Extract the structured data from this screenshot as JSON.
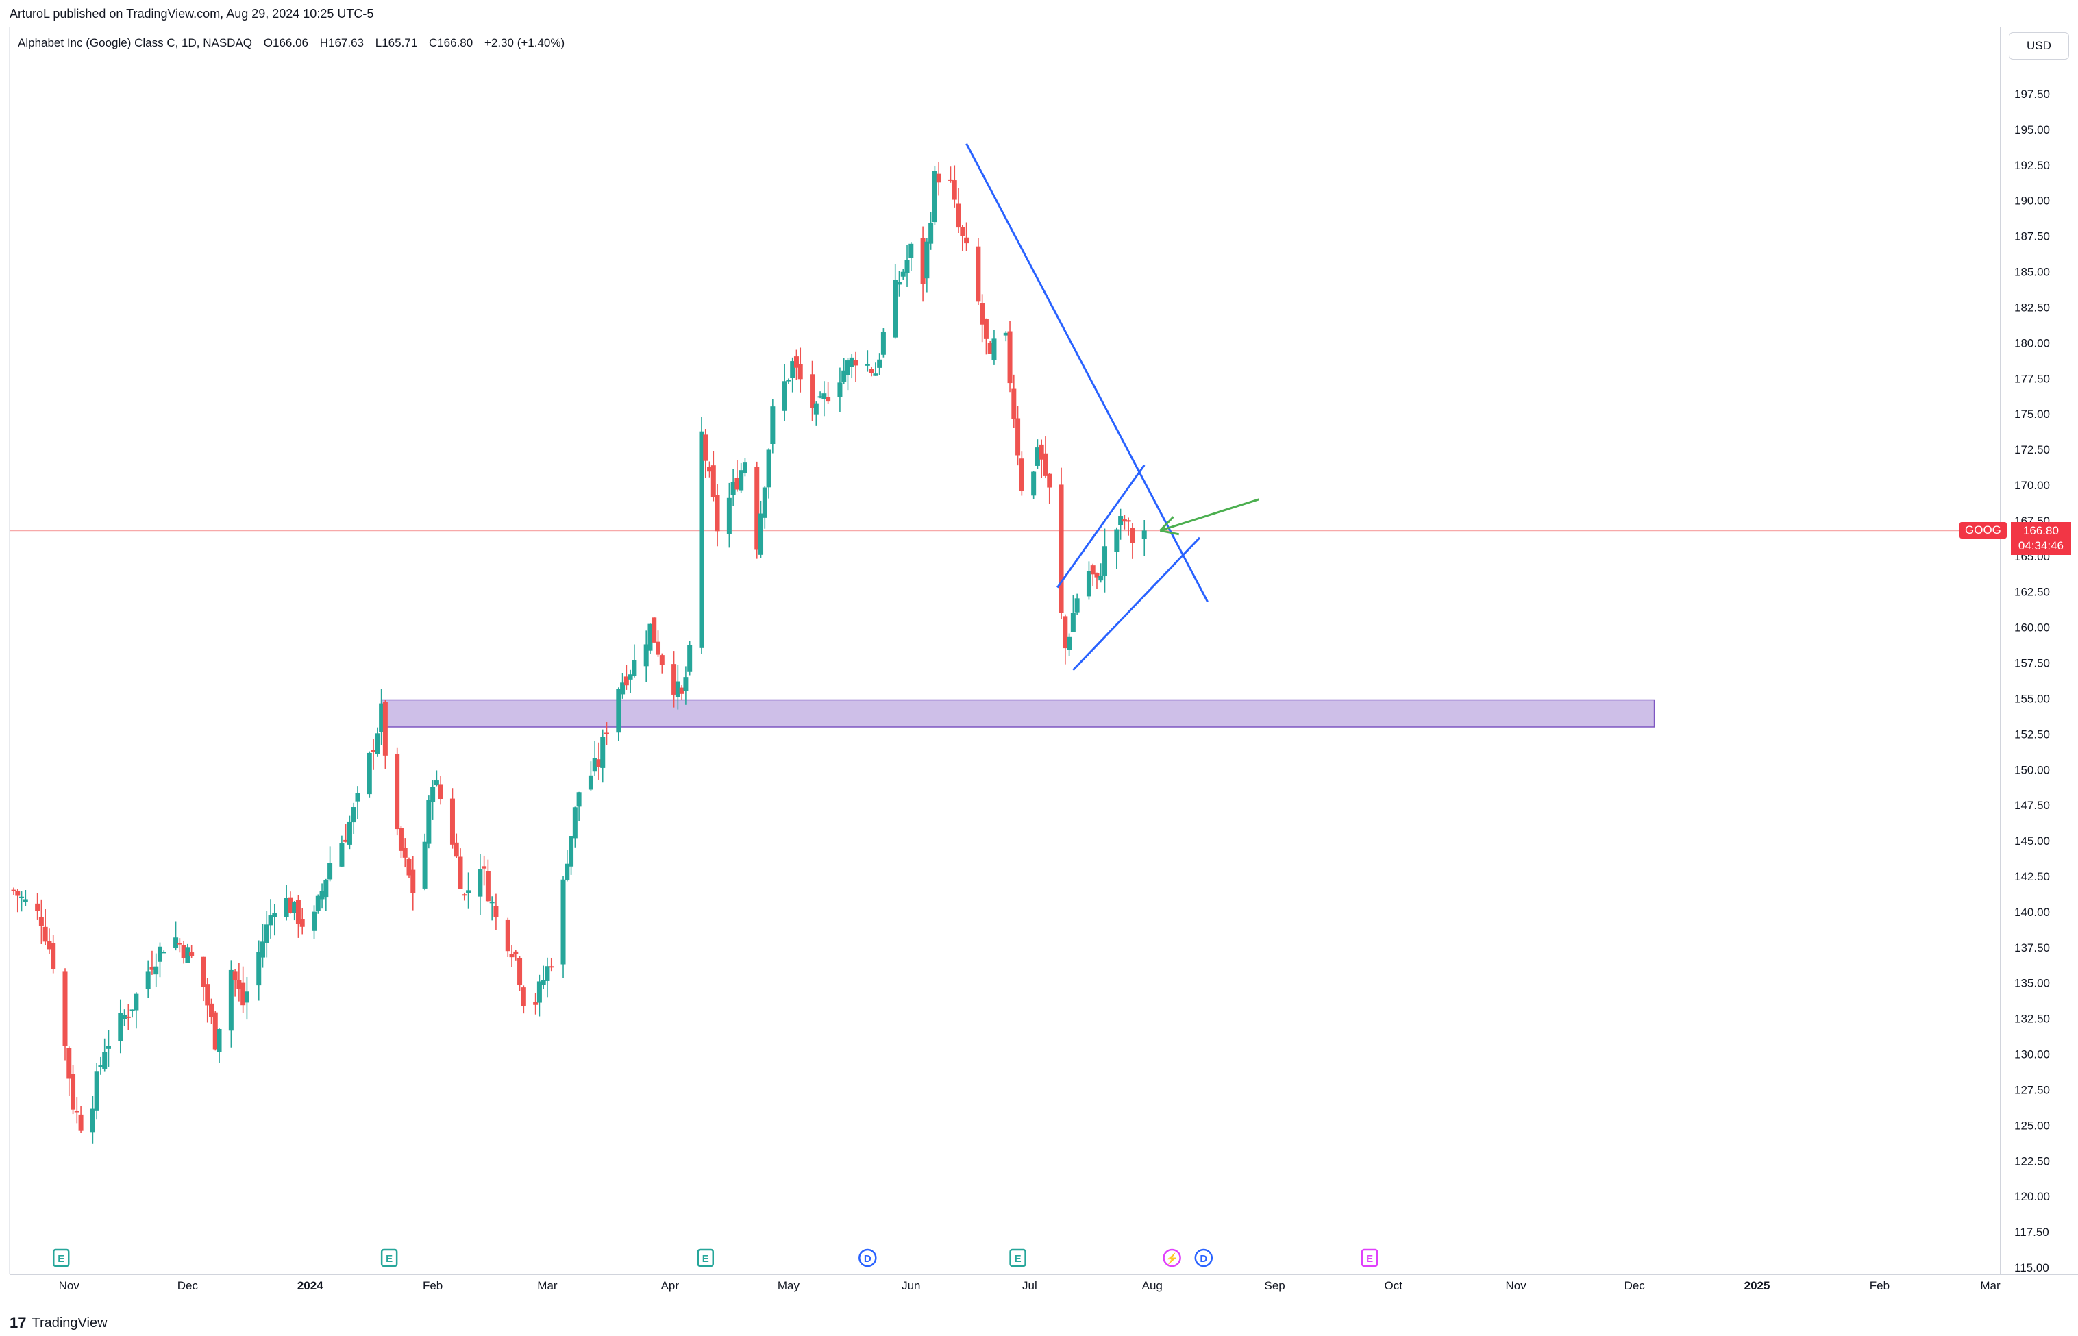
{
  "publisher": "ArturoL published on TradingView.com, Aug 29, 2024 10:25 UTC-5",
  "legend": {
    "symbol": "Alphabet Inc (Google) Class C, 1D, NASDAQ",
    "open": "O166.06",
    "high": "H167.63",
    "low": "L165.71",
    "close": "C166.80",
    "change": "+2.30 (+1.40%)"
  },
  "currency": "USD",
  "price_tag": {
    "symbol": "GOOG",
    "price": "166.80",
    "countdown": "04:34:46"
  },
  "branding": {
    "logo_mark": "17",
    "name": "TradingView"
  },
  "colors": {
    "up": "#26a69a",
    "down": "#ef5350",
    "trendline": "#2962ff",
    "arrow": "#4caf50",
    "zone": "#b39ddb",
    "price_line": "#f23645"
  },
  "chart_data": {
    "type": "candlestick",
    "ylim": [
      115,
      197.5
    ],
    "y_ticks": [
      "197.50",
      "195.00",
      "192.50",
      "190.00",
      "187.50",
      "185.00",
      "182.50",
      "180.00",
      "177.50",
      "175.00",
      "172.50",
      "170.00",
      "167.50",
      "165.00",
      "162.50",
      "160.00",
      "157.50",
      "155.00",
      "152.50",
      "150.00",
      "147.50",
      "145.00",
      "142.50",
      "140.00",
      "137.50",
      "135.00",
      "132.50",
      "130.00",
      "127.50",
      "125.00",
      "122.50",
      "120.00",
      "117.50",
      "115.00"
    ],
    "x_ticks": [
      {
        "label": "Nov",
        "day": 29
      },
      {
        "label": "Dec",
        "day": 59
      },
      {
        "label": "2024",
        "day": 90
      },
      {
        "label": "Feb",
        "day": 121
      },
      {
        "label": "Mar",
        "day": 150
      },
      {
        "label": "Apr",
        "day": 181
      },
      {
        "label": "May",
        "day": 211
      },
      {
        "label": "Jun",
        "day": 242
      },
      {
        "label": "Jul",
        "day": 272
      },
      {
        "label": "Aug",
        "day": 303
      },
      {
        "label": "Sep",
        "day": 334
      },
      {
        "label": "Oct",
        "day": 364
      },
      {
        "label": "Nov",
        "day": 395
      },
      {
        "label": "Dec",
        "day": 425
      },
      {
        "label": "2025",
        "day": 456
      },
      {
        "label": "Feb",
        "day": 487
      },
      {
        "label": "Mar",
        "day": 515
      }
    ],
    "x_range_days": [
      15,
      515
    ],
    "anchors": [
      {
        "day": 15,
        "close": 141.5
      },
      {
        "day": 22,
        "close": 139.5
      },
      {
        "day": 25,
        "close": 136.5
      },
      {
        "day": 30,
        "close": 126.5
      },
      {
        "day": 33,
        "close": 124.5
      },
      {
        "day": 38,
        "close": 130.5
      },
      {
        "day": 45,
        "close": 133.5
      },
      {
        "day": 50,
        "close": 136.5
      },
      {
        "day": 55,
        "close": 138.5
      },
      {
        "day": 62,
        "close": 136.0
      },
      {
        "day": 66,
        "close": 131.0
      },
      {
        "day": 70,
        "close": 136.0
      },
      {
        "day": 73,
        "close": 133.5
      },
      {
        "day": 78,
        "close": 138.0
      },
      {
        "day": 82,
        "close": 141.5
      },
      {
        "day": 86,
        "close": 140.0
      },
      {
        "day": 90,
        "close": 138.5
      },
      {
        "day": 95,
        "close": 143.5
      },
      {
        "day": 99,
        "close": 145.5
      },
      {
        "day": 103,
        "close": 148.5
      },
      {
        "day": 108,
        "close": 154.0
      },
      {
        "day": 111,
        "close": 146.0
      },
      {
        "day": 116,
        "close": 141.5
      },
      {
        "day": 119,
        "close": 145.0
      },
      {
        "day": 121,
        "close": 149.5
      },
      {
        "day": 125,
        "close": 146.5
      },
      {
        "day": 129,
        "close": 141.0
      },
      {
        "day": 133,
        "close": 143.5
      },
      {
        "day": 137,
        "close": 139.5
      },
      {
        "day": 142,
        "close": 137.0
      },
      {
        "day": 144,
        "close": 134.0
      },
      {
        "day": 146,
        "close": 133.0
      },
      {
        "day": 152,
        "close": 137.5
      },
      {
        "day": 155,
        "close": 144.0
      },
      {
        "day": 158,
        "close": 148.5
      },
      {
        "day": 163,
        "close": 150.5
      },
      {
        "day": 167,
        "close": 155.5
      },
      {
        "day": 172,
        "close": 157.5
      },
      {
        "day": 176,
        "close": 160.0
      },
      {
        "day": 180,
        "close": 157.0
      },
      {
        "day": 184,
        "close": 155.0
      },
      {
        "day": 186,
        "close": 158.0
      },
      {
        "day": 188,
        "close": 154.0
      },
      {
        "day": 189,
        "close": 173.5
      },
      {
        "day": 193,
        "close": 167.0
      },
      {
        "day": 196,
        "close": 169.0
      },
      {
        "day": 201,
        "close": 172.5
      },
      {
        "day": 203,
        "close": 166.0
      },
      {
        "day": 207,
        "close": 175.0
      },
      {
        "day": 212,
        "close": 178.5
      },
      {
        "day": 218,
        "close": 175.0
      },
      {
        "day": 223,
        "close": 177.5
      },
      {
        "day": 228,
        "close": 179.0
      },
      {
        "day": 233,
        "close": 178.0
      },
      {
        "day": 237,
        "close": 183.0
      },
      {
        "day": 242,
        "close": 186.5
      },
      {
        "day": 245,
        "close": 184.5
      },
      {
        "day": 248,
        "close": 191.5
      },
      {
        "day": 251,
        "close": 192.5
      },
      {
        "day": 254,
        "close": 188.0
      },
      {
        "day": 257,
        "close": 185.5
      },
      {
        "day": 262,
        "close": 178.5
      },
      {
        "day": 265,
        "close": 182.5
      },
      {
        "day": 268,
        "close": 175.0
      },
      {
        "day": 270,
        "close": 170.0
      },
      {
        "day": 272,
        "close": 168.5
      },
      {
        "day": 274,
        "close": 173.0
      },
      {
        "day": 277,
        "close": 169.5
      },
      {
        "day": 279,
        "close": 163.0
      },
      {
        "day": 281,
        "close": 158.5
      },
      {
        "day": 283,
        "close": 161.0
      },
      {
        "day": 286,
        "close": 164.5
      },
      {
        "day": 289,
        "close": 163.0
      },
      {
        "day": 292,
        "close": 166.5
      },
      {
        "day": 296,
        "close": 167.5
      },
      {
        "day": 299,
        "close": 165.5
      },
      {
        "day": 301,
        "close": 166.8
      }
    ],
    "support_zone": {
      "from_day": 108,
      "to_day": 430,
      "low": 153.0,
      "high": 154.9
    },
    "trendlines": [
      {
        "name": "falling-resistance",
        "points": [
          {
            "day": 256,
            "price": 194.0
          },
          {
            "day": 317,
            "price": 161.8
          }
        ]
      },
      {
        "name": "flag-upper",
        "points": [
          {
            "day": 279,
            "price": 162.8
          },
          {
            "day": 301,
            "price": 171.4
          }
        ]
      },
      {
        "name": "flag-lower",
        "points": [
          {
            "day": 283,
            "price": 157.0
          },
          {
            "day": 315,
            "price": 166.3
          }
        ]
      }
    ],
    "annotation_arrow": {
      "from": {
        "day": 330,
        "price": 169.0
      },
      "to": {
        "day": 305,
        "price": 166.8
      }
    },
    "current_price": 166.8,
    "events": [
      {
        "type": "E",
        "day": 27,
        "color": "#26a69a"
      },
      {
        "type": "E",
        "day": 110,
        "color": "#26a69a"
      },
      {
        "type": "E",
        "day": 190,
        "color": "#26a69a"
      },
      {
        "type": "D",
        "day": 231,
        "color": "#2962ff"
      },
      {
        "type": "E",
        "day": 269,
        "color": "#26a69a"
      },
      {
        "type": "S",
        "day": 308,
        "color": "#e040fb"
      },
      {
        "type": "D",
        "day": 316,
        "color": "#2962ff"
      },
      {
        "type": "E",
        "day": 358,
        "color": "#e040fb"
      }
    ]
  }
}
